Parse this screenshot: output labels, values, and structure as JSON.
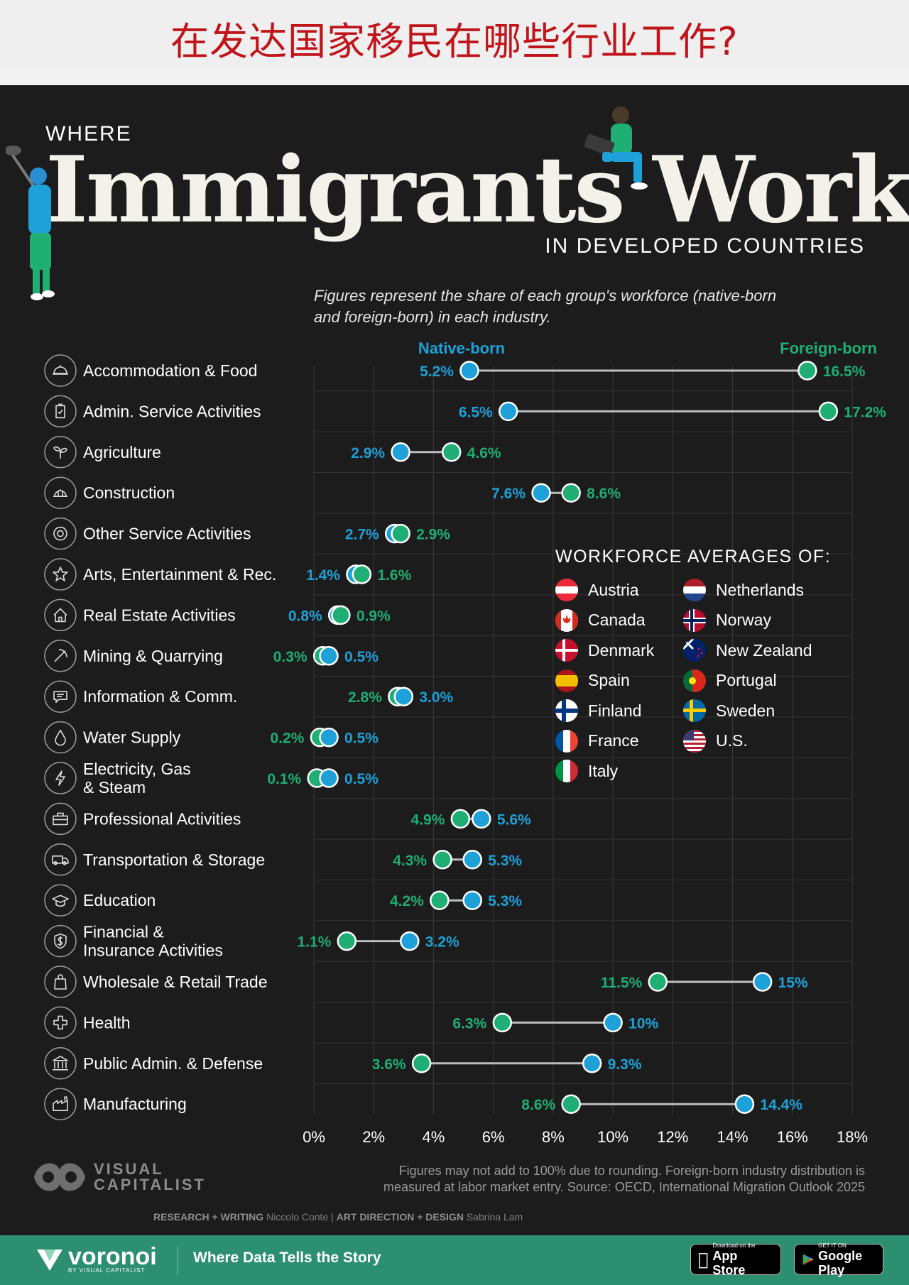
{
  "banner": {
    "title": "在发达国家移民在哪些行业工作?"
  },
  "header": {
    "where": "WHERE",
    "headline": "Immigrants Work",
    "subhead": "IN DEVELOPED COUNTRIES",
    "note": "Figures represent the share of each group's workforce (native-born and foreign-born) in each industry."
  },
  "legend": {
    "title": "WORKFORCE AVERAGES OF:",
    "countries": [
      "Austria",
      "Canada",
      "Denmark",
      "Spain",
      "Finland",
      "France",
      "Italy",
      "Netherlands",
      "Norway",
      "New Zealand",
      "Portugal",
      "Sweden",
      "U.S."
    ]
  },
  "colors": {
    "native": "#1ea0d8",
    "foreign": "#1fae73",
    "background": "#1c1c1c",
    "banner_text": "#c0141a",
    "bottom_bar": "#2c8f6f"
  },
  "chart_data": {
    "type": "dumbbell",
    "series_labels": {
      "native": "Native-born",
      "foreign": "Foreign-born"
    },
    "xlim": [
      0,
      18
    ],
    "xticks": [
      "0%",
      "2%",
      "4%",
      "6%",
      "8%",
      "10%",
      "12%",
      "14%",
      "16%",
      "18%"
    ],
    "industries": [
      {
        "name": [
          "Accommodation & Food"
        ],
        "icon": "cloche-icon",
        "native": 5.2,
        "foreign": 16.5,
        "native_label": "5.2%",
        "foreign_label": "16.5%"
      },
      {
        "name": [
          "Admin. Service Activities"
        ],
        "icon": "clipboard-icon",
        "native": 6.5,
        "foreign": 17.2,
        "native_label": "6.5%",
        "foreign_label": "17.2%"
      },
      {
        "name": [
          "Agriculture"
        ],
        "icon": "sprout-icon",
        "native": 2.9,
        "foreign": 4.6,
        "native_label": "2.9%",
        "foreign_label": "4.6%"
      },
      {
        "name": [
          "Construction"
        ],
        "icon": "hardhat-icon",
        "native": 7.6,
        "foreign": 8.6,
        "native_label": "7.6%",
        "foreign_label": "8.6%"
      },
      {
        "name": [
          "Other Service Activities"
        ],
        "icon": "gear-icon",
        "native": 2.7,
        "foreign": 2.9,
        "native_label": "2.7%",
        "foreign_label": "2.9%"
      },
      {
        "name": [
          "Arts, Entertainment & Rec."
        ],
        "icon": "star-icon",
        "native": 1.4,
        "foreign": 1.6,
        "native_label": "1.4%",
        "foreign_label": "1.6%"
      },
      {
        "name": [
          "Real Estate Activities"
        ],
        "icon": "house-icon",
        "native": 0.8,
        "foreign": 0.9,
        "native_label": "0.8%",
        "foreign_label": "0.9%"
      },
      {
        "name": [
          "Mining & Quarrying"
        ],
        "icon": "pickaxe-icon",
        "native": 0.5,
        "foreign": 0.3,
        "native_label": "0.5%",
        "foreign_label": "0.3%"
      },
      {
        "name": [
          "Information & Comm."
        ],
        "icon": "chat-bubble-icon",
        "native": 3.0,
        "foreign": 2.8,
        "native_label": "3.0%",
        "foreign_label": "2.8%"
      },
      {
        "name": [
          "Water Supply"
        ],
        "icon": "water-drop-icon",
        "native": 0.5,
        "foreign": 0.2,
        "native_label": "0.5%",
        "foreign_label": "0.2%"
      },
      {
        "name": [
          "Electricity, Gas",
          "& Steam"
        ],
        "icon": "lightning-icon",
        "native": 0.5,
        "foreign": 0.1,
        "native_label": "0.5%",
        "foreign_label": "0.1%"
      },
      {
        "name": [
          "Professional Activities"
        ],
        "icon": "briefcase-icon",
        "native": 5.6,
        "foreign": 4.9,
        "native_label": "5.6%",
        "foreign_label": "4.9%"
      },
      {
        "name": [
          "Transportation & Storage"
        ],
        "icon": "truck-icon",
        "native": 5.3,
        "foreign": 4.3,
        "native_label": "5.3%",
        "foreign_label": "4.3%"
      },
      {
        "name": [
          "Education"
        ],
        "icon": "graduation-cap-icon",
        "native": 5.3,
        "foreign": 4.2,
        "native_label": "5.3%",
        "foreign_label": "4.2%"
      },
      {
        "name": [
          "Financial &",
          "Insurance Activities"
        ],
        "icon": "dollar-shield-icon",
        "native": 3.2,
        "foreign": 1.1,
        "native_label": "3.2%",
        "foreign_label": "1.1%"
      },
      {
        "name": [
          "Wholesale & Retail Trade"
        ],
        "icon": "shopping-bag-icon",
        "native": 15,
        "foreign": 11.5,
        "native_label": "15%",
        "foreign_label": "11.5%"
      },
      {
        "name": [
          "Health"
        ],
        "icon": "medical-cross-icon",
        "native": 10,
        "foreign": 6.3,
        "native_label": "10%",
        "foreign_label": "6.3%"
      },
      {
        "name": [
          "Public Admin. & Defense"
        ],
        "icon": "government-building-icon",
        "native": 9.3,
        "foreign": 3.6,
        "native_label": "9.3%",
        "foreign_label": "3.6%"
      },
      {
        "name": [
          "Manufacturing"
        ],
        "icon": "factory-icon",
        "native": 14.4,
        "foreign": 8.6,
        "native_label": "14.4%",
        "foreign_label": "8.6%"
      }
    ]
  },
  "footer": {
    "footnote": "Figures may not add to 100% due to rounding. Foreign-born industry distribution is measured at labor market entry. Source: OECD, International Migration Outlook 2025",
    "logo_line1": "VISUAL",
    "logo_line2": "CAPITALIST",
    "research_label": "RESEARCH + WRITING",
    "research_name": "Niccolo Conte",
    "design_label": "ART DIRECTION + DESIGN",
    "design_name": "Sabrina Lam"
  },
  "bottom_bar": {
    "brand": "voronoi",
    "brand_sub": "BY VISUAL CAPITALIST",
    "tagline": "Where Data Tells the Story",
    "app_store_small": "Download on the",
    "app_store_big": "App Store",
    "google_small": "GET IT ON",
    "google_big": "Google Play"
  }
}
